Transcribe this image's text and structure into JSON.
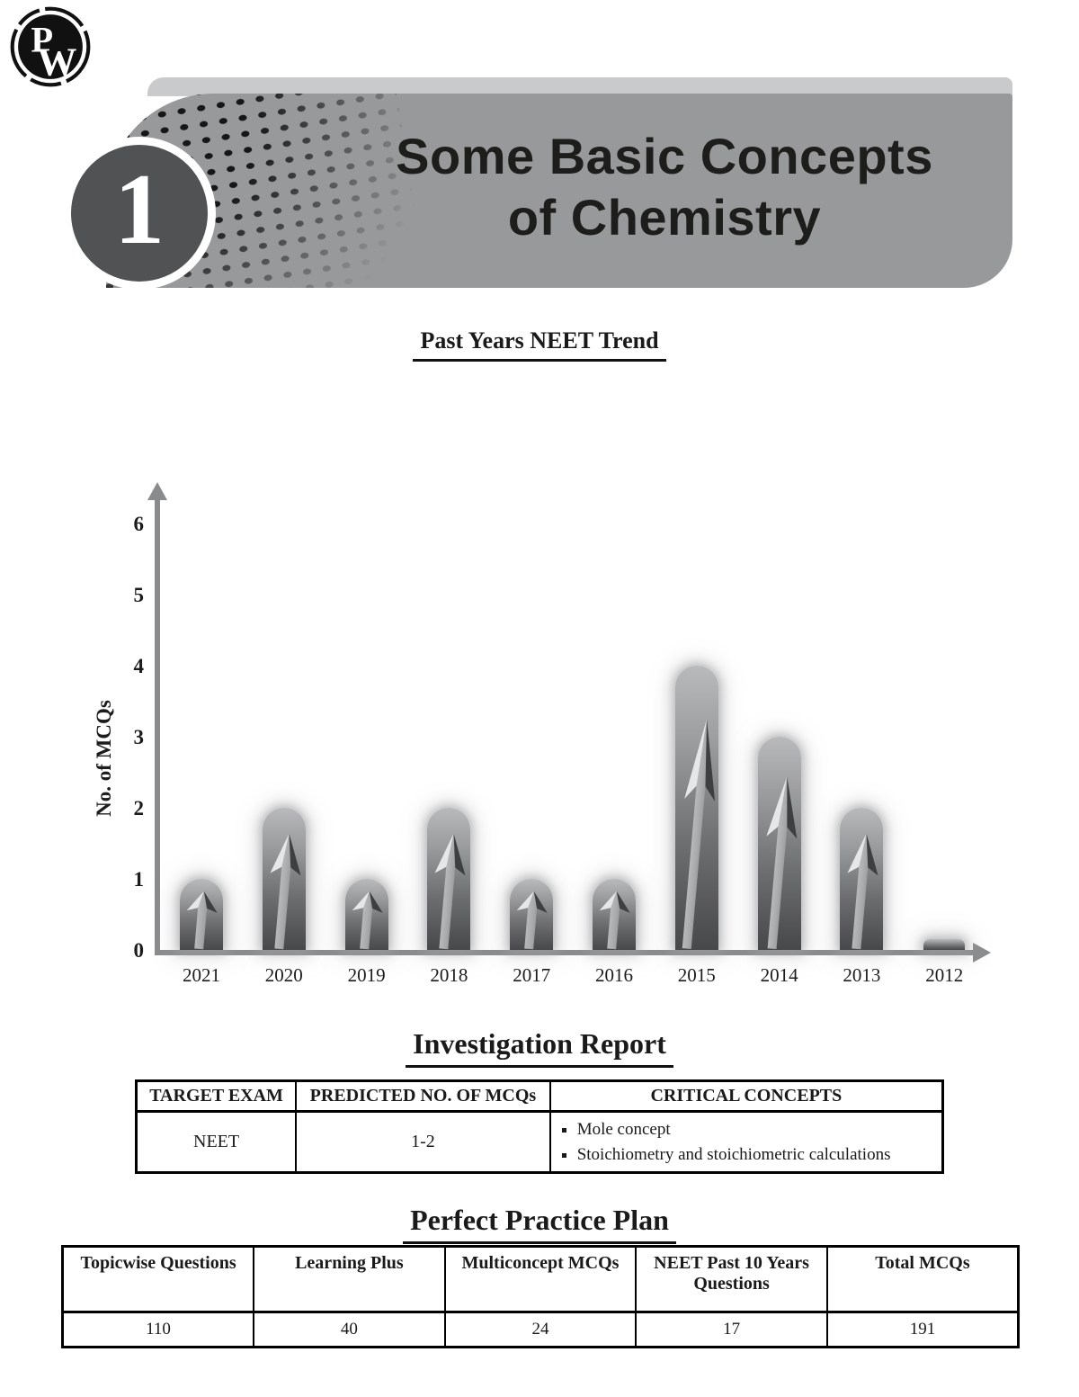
{
  "logo": {
    "letter_top": "P",
    "letter_bottom": "W"
  },
  "chapter": {
    "number": "1",
    "title_line1": "Some Basic Concepts",
    "title_line2": "of Chemistry"
  },
  "trend": {
    "heading": "Past Years NEET Trend"
  },
  "chart_data": {
    "type": "bar",
    "title": "Past Years NEET Trend",
    "categories": [
      "2021",
      "2020",
      "2019",
      "2018",
      "2017",
      "2016",
      "2015",
      "2014",
      "2013",
      "2012"
    ],
    "values": [
      1,
      2,
      1,
      2,
      1,
      1,
      4,
      3,
      2,
      0
    ],
    "ylabel": "No. of MCQs",
    "xlabel": "",
    "yticks": [
      "0",
      "1",
      "2",
      "3",
      "4",
      "5",
      "6"
    ],
    "ylim": [
      0,
      6
    ],
    "grid": false,
    "legend": false
  },
  "investigation": {
    "heading": "Investigation Report",
    "table": {
      "headers": [
        "TARGET EXAM",
        "PREDICTED NO. OF MCQs",
        "CRITICAL CONCEPTS"
      ],
      "row": {
        "target_exam": "NEET",
        "predicted": "1-2",
        "concepts": [
          "Mole concept",
          "Stoichiometry and stoichiometric calculations"
        ]
      }
    }
  },
  "practice": {
    "heading": "Perfect Practice Plan",
    "table": {
      "headers": [
        "Topicwise Questions",
        "Learning Plus",
        "Multiconcept MCQs",
        "NEET Past 10 Years Questions",
        "Total MCQs"
      ],
      "values": [
        "110",
        "40",
        "24",
        "17",
        "191"
      ]
    }
  },
  "colors": {
    "banner_body": "#98999b",
    "banner_strip": "#c9cacc",
    "chapter_circle": "#515254",
    "axis": "#8a8b8d",
    "bar_top": "#b9babc",
    "bar_bottom": "#47484a",
    "text": "#1a1a1a"
  }
}
